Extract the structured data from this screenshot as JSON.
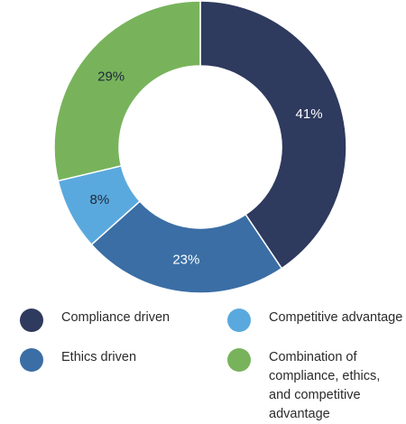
{
  "chart_data": {
    "type": "pie",
    "donut": true,
    "legend_position": "bottom",
    "slices": [
      {
        "label": "Compliance driven",
        "value": 41,
        "display": "41%",
        "color": "#2e3a5e",
        "label_color": "#ffffff"
      },
      {
        "label": "Ethics driven",
        "value": 23,
        "display": "23%",
        "color": "#3a6ea5",
        "label_color": "#ffffff"
      },
      {
        "label": "Competitive advantage",
        "value": 8,
        "display": "8%",
        "color": "#5aa9de",
        "label_color": "#1f2a3a"
      },
      {
        "label": "Combination of compliance, ethics, and competitive advantage",
        "value": 29,
        "display": "29%",
        "color": "#78b35b",
        "label_color": "#1f2a3a"
      }
    ]
  },
  "legend": {
    "compliance_driven": "Compliance driven",
    "ethics_driven": "Ethics driven",
    "competitive_advantage": "Competitive advantage",
    "combination": "Combination of\ncompliance, ethics,\nand competitive\nadvantage"
  }
}
